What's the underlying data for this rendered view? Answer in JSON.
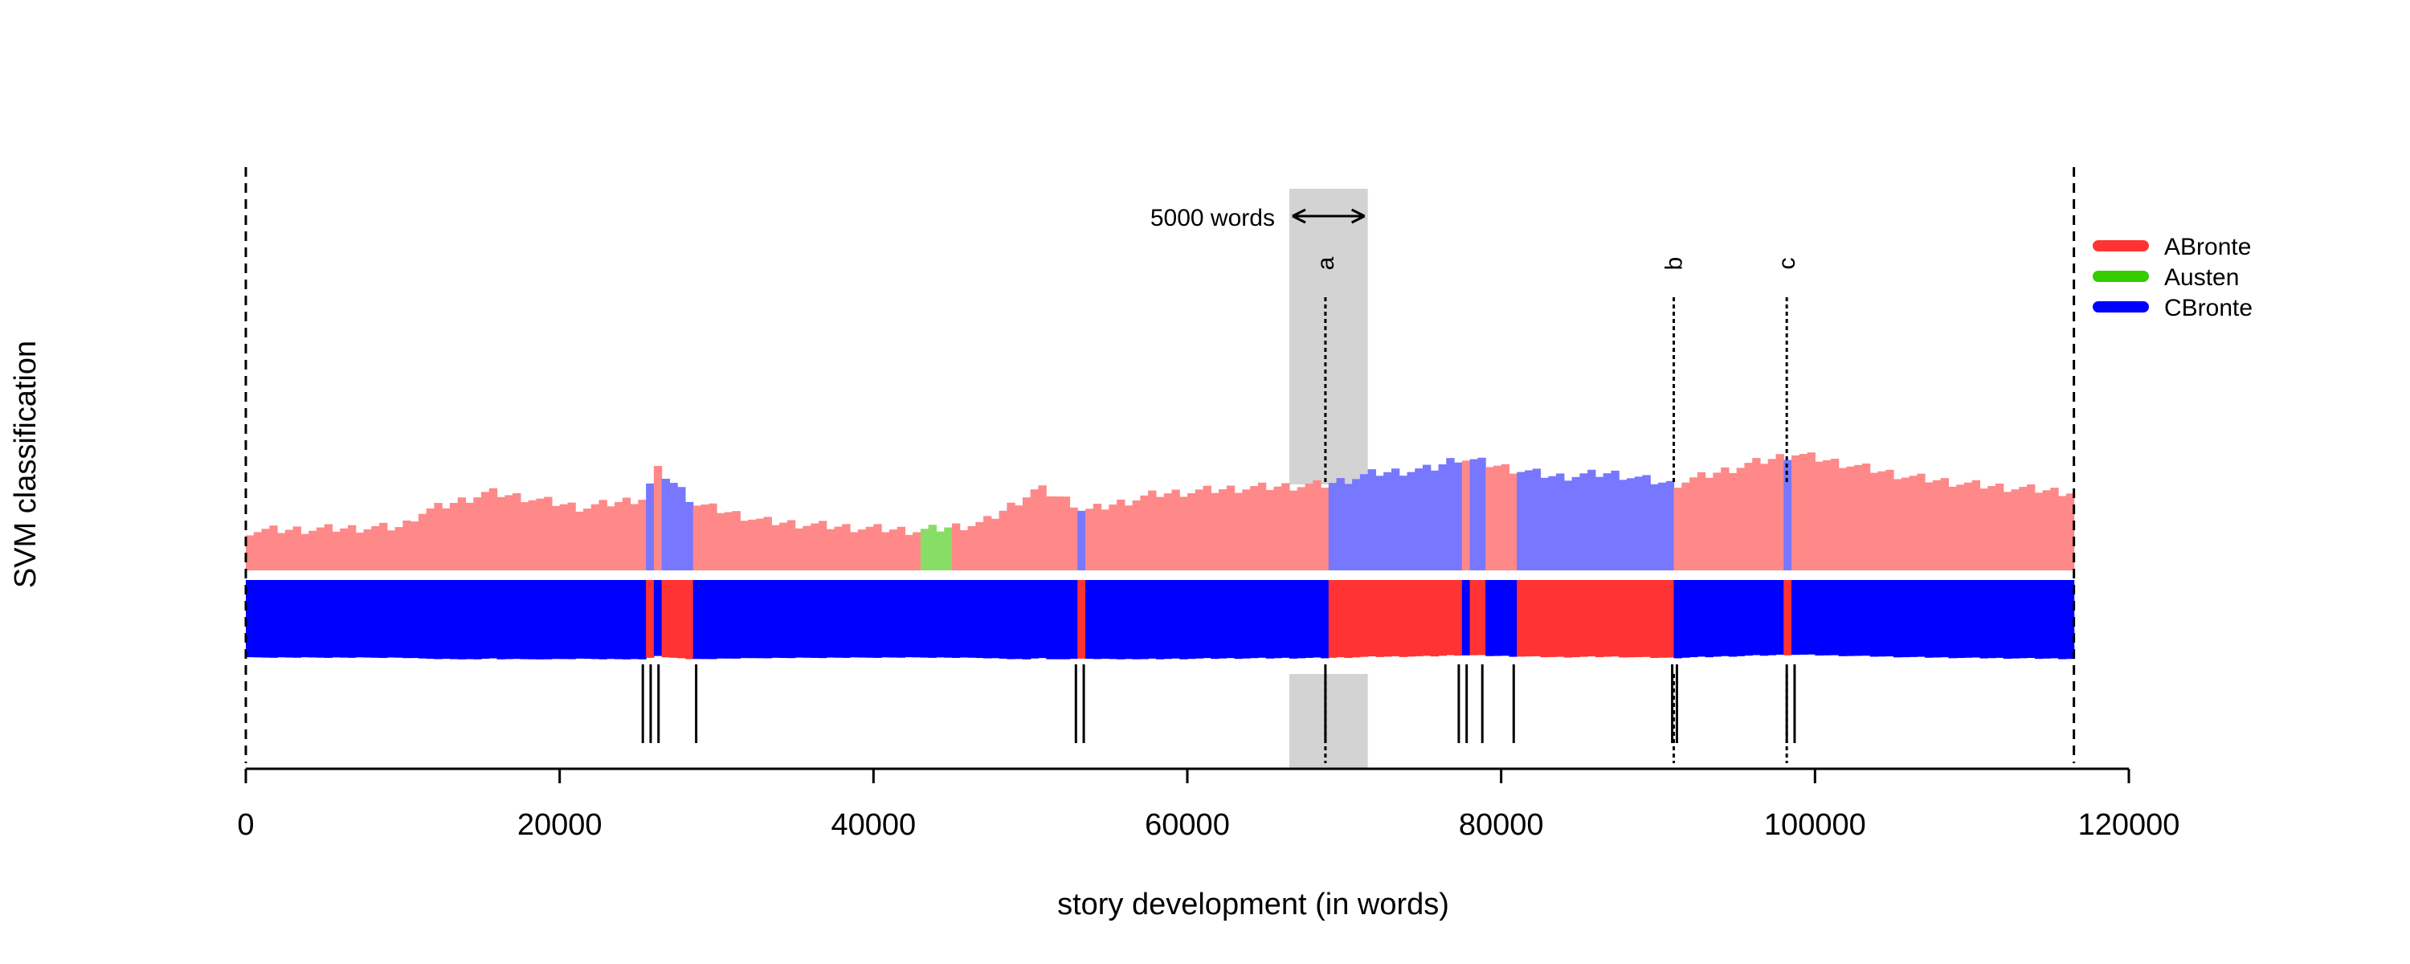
{
  "chart_data": {
    "type": "bar",
    "title": "",
    "xlabel": "story development (in words)",
    "ylabel": "SVM classification",
    "xlim": [
      0,
      120000
    ],
    "x_ticks": [
      0,
      20000,
      40000,
      60000,
      80000,
      100000,
      120000
    ],
    "text_length": 116500,
    "legend": {
      "placement": "right",
      "entries": [
        {
          "name": "ABronte",
          "color": "#FF3333"
        },
        {
          "name": "Austen",
          "color": "#33CC00"
        },
        {
          "name": "CBronte",
          "color": "#0000FF"
        }
      ]
    },
    "window": {
      "label": "5000 words",
      "start": 66500,
      "end": 71500
    },
    "markers": [
      {
        "label": "a",
        "x": 68800
      },
      {
        "label": "b",
        "x": 91000
      },
      {
        "label": "c",
        "x": 98200
      }
    ],
    "segments": [
      {
        "start": 0,
        "end": 25300,
        "class": "ABronte"
      },
      {
        "start": 25300,
        "end": 25800,
        "class": "CBronte"
      },
      {
        "start": 25800,
        "end": 26300,
        "class": "ABronte"
      },
      {
        "start": 26300,
        "end": 28700,
        "class": "CBronte"
      },
      {
        "start": 28700,
        "end": 42800,
        "class": "ABronte"
      },
      {
        "start": 42800,
        "end": 44800,
        "class": "Austen"
      },
      {
        "start": 44800,
        "end": 52900,
        "class": "ABronte"
      },
      {
        "start": 52900,
        "end": 53400,
        "class": "CBronte"
      },
      {
        "start": 53400,
        "end": 68800,
        "class": "ABronte"
      },
      {
        "start": 68800,
        "end": 77300,
        "class": "CBronte"
      },
      {
        "start": 77300,
        "end": 77800,
        "class": "ABronte"
      },
      {
        "start": 77800,
        "end": 78800,
        "class": "CBronte"
      },
      {
        "start": 78800,
        "end": 80800,
        "class": "ABronte"
      },
      {
        "start": 80800,
        "end": 90900,
        "class": "CBronte"
      },
      {
        "start": 90900,
        "end": 98200,
        "class": "ABronte"
      },
      {
        "start": 98200,
        "end": 98700,
        "class": "CBronte"
      },
      {
        "start": 98700,
        "end": 116500,
        "class": "ABronte"
      }
    ],
    "winner_profile": {
      "x": [
        0,
        10000,
        11000,
        15500,
        18000,
        21500,
        25300,
        26300,
        28700,
        33000,
        38000,
        43000,
        47000,
        50500,
        52900,
        53400,
        58000,
        63000,
        68800,
        72000,
        75500,
        77300,
        80800,
        83500,
        87000,
        90900,
        95500,
        98700,
        106000,
        110000,
        116500
      ],
      "values": [
        0.38,
        0.4,
        0.47,
        0.58,
        0.55,
        0.5,
        0.55,
        0.7,
        0.52,
        0.43,
        0.4,
        0.38,
        0.42,
        0.6,
        0.52,
        0.48,
        0.57,
        0.6,
        0.62,
        0.68,
        0.7,
        0.76,
        0.7,
        0.66,
        0.68,
        0.62,
        0.72,
        0.78,
        0.66,
        0.62,
        0.58
      ]
    },
    "breakpoints": [
      25300,
      25800,
      26300,
      28700,
      52900,
      53400,
      68800,
      77300,
      77800,
      78800,
      80800,
      90900,
      91200,
      98200,
      98700
    ]
  }
}
